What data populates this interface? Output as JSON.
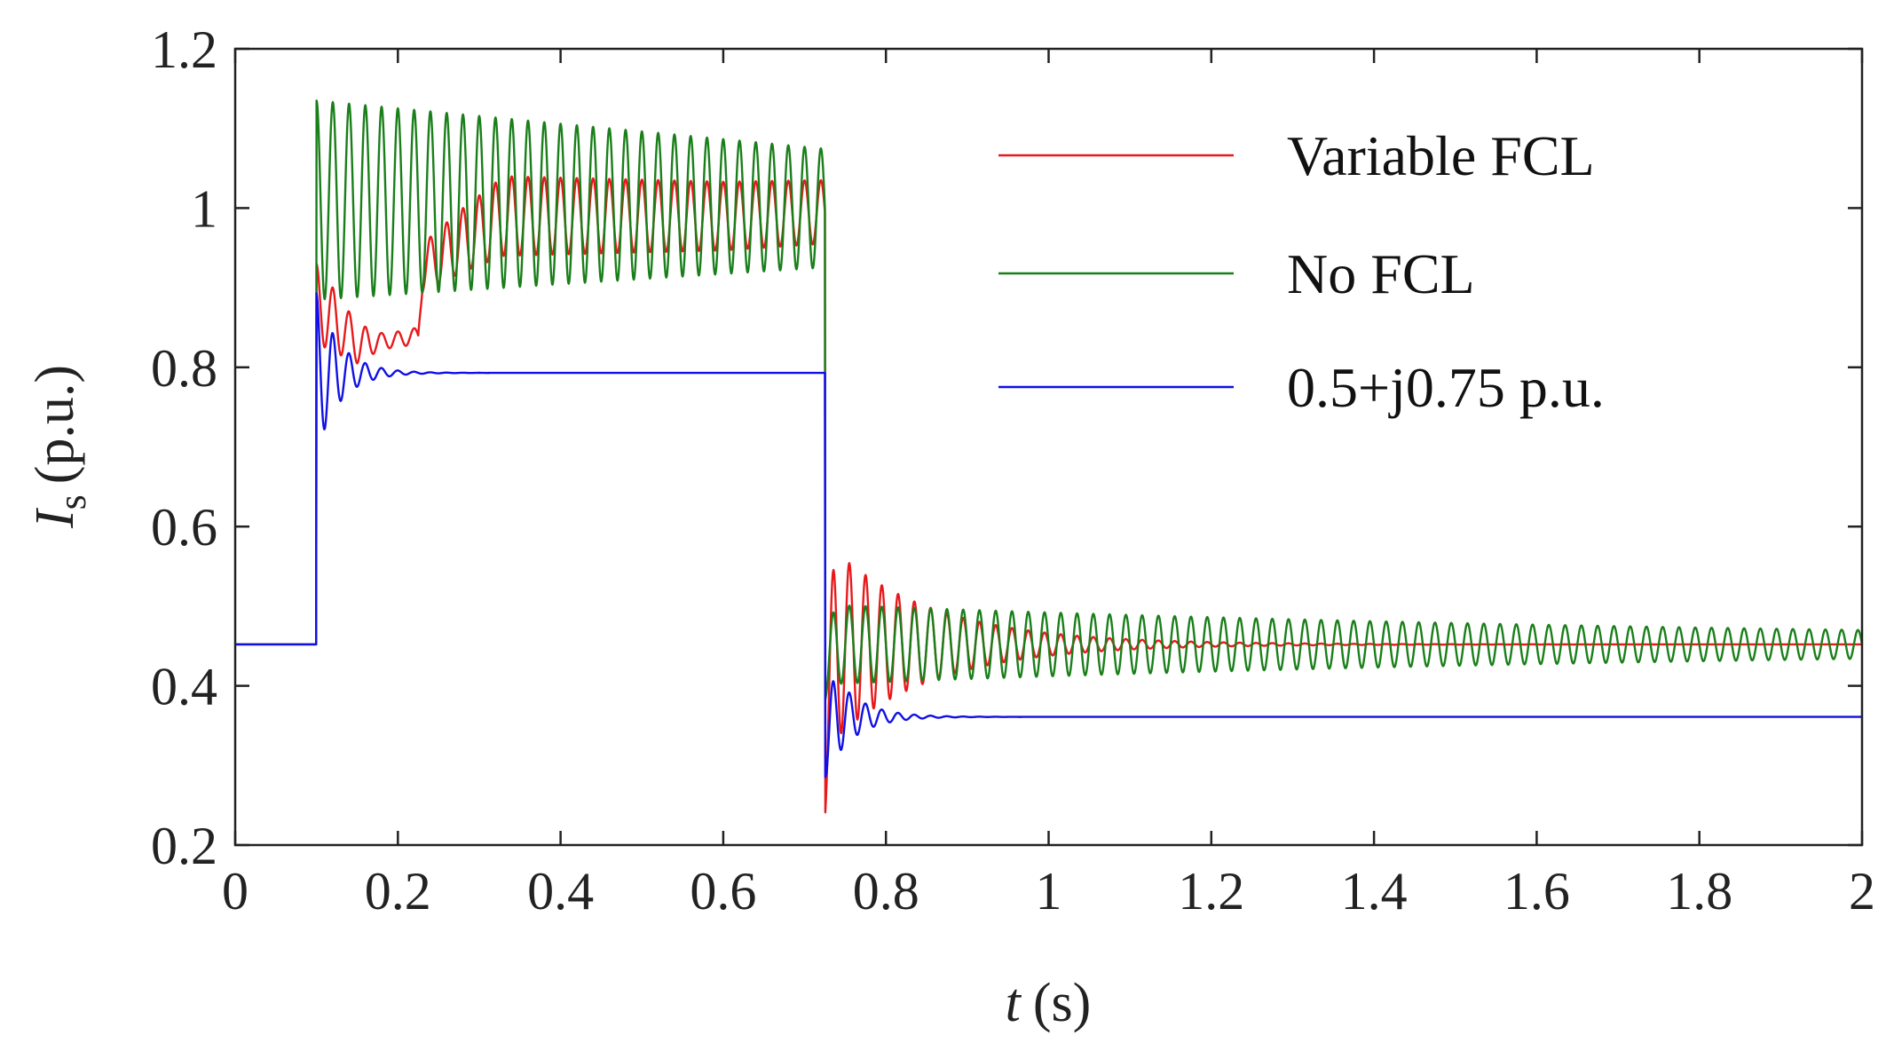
{
  "chart_data": {
    "type": "line",
    "xlabel": {
      "var": "t",
      "unit": "(s)"
    },
    "ylabel": {
      "var": "I",
      "sub": "s",
      "unit": "(p.u.)"
    },
    "xlim": [
      0,
      2
    ],
    "ylim": [
      0.2,
      1.2
    ],
    "xticks": [
      0,
      0.2,
      0.4,
      0.6,
      0.8,
      1,
      1.2,
      1.4,
      1.6,
      1.8,
      2
    ],
    "xtick_labels": [
      "0",
      "0.2",
      "0.4",
      "0.6",
      "0.8",
      "1",
      "1.2",
      "1.4",
      "1.6",
      "1.8",
      "2"
    ],
    "yticks": [
      0.2,
      0.4,
      0.6,
      0.8,
      1,
      1.2
    ],
    "ytick_labels": [
      "0.2",
      "0.4",
      "0.6",
      "0.8",
      "1",
      "1.2"
    ],
    "grid": false,
    "legend_position": "top-right",
    "fault_start_s": 0.1,
    "fault_clear_s": 0.725,
    "oscillation_freq_hz": 50,
    "series": [
      {
        "name": "Variable FCL",
        "color": "#e8191b",
        "pre_fault": 0.452,
        "fault_points": [
          [
            0.1,
            0.88
          ],
          [
            0.12,
            0.86
          ],
          [
            0.15,
            0.83
          ],
          [
            0.2,
            0.835
          ],
          [
            0.225,
            0.84
          ],
          [
            0.23,
            0.925
          ],
          [
            0.28,
            0.96
          ],
          [
            0.33,
            0.99
          ],
          [
            0.45,
            0.99
          ],
          [
            0.6,
            0.99
          ],
          [
            0.72,
            0.995
          ]
        ],
        "fault_amplitude": [
          [
            0.1,
            0.05
          ],
          [
            0.18,
            0.01
          ],
          [
            0.225,
            0.01
          ],
          [
            0.23,
            0.03
          ],
          [
            0.33,
            0.05
          ],
          [
            0.72,
            0.04
          ]
        ],
        "fault_amp_decay": 0,
        "post_value": 0.452,
        "post_amplitude": 0.13,
        "post_decay": 8,
        "post_min": 0.23
      },
      {
        "name": "No FCL",
        "color": "#1a7f1a",
        "pre_fault": 0.452,
        "fault_points": [
          [
            0.1,
            1.01
          ],
          [
            0.72,
            1.0
          ]
        ],
        "fault_amplitude": [
          [
            0.1,
            0.125
          ],
          [
            0.72,
            0.075
          ]
        ],
        "fault_amp_decay": 0,
        "post_value": 0.452,
        "post_amplitude": 0.05,
        "post_decay": 0.8,
        "post_min": 0.38
      },
      {
        "name": "0.5+j0.75 p.u.",
        "color": "#1010e6",
        "pre_fault": 0.452,
        "fault_points": [
          [
            0.1,
            0.793
          ],
          [
            0.72,
            0.793
          ]
        ],
        "fault_amplitude": [
          [
            0.1,
            0.1
          ],
          [
            0.72,
            0.1
          ]
        ],
        "fault_amp_decay": 35,
        "post_value": 0.361,
        "post_amplitude": 0.075,
        "post_decay": 30,
        "post_min": 0.285
      }
    ]
  }
}
